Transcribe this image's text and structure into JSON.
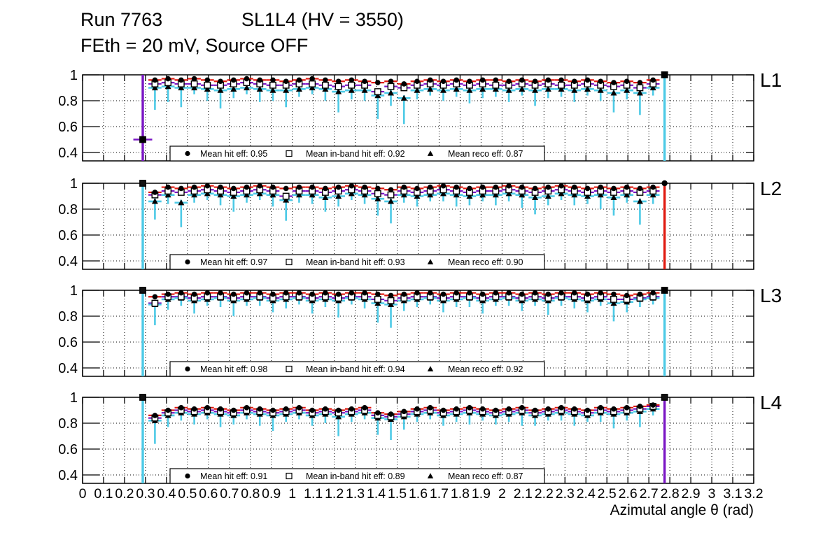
{
  "header": {
    "run": "Run 7763",
    "chamber": "SL1L4 (HV = 3550)",
    "conditions": "FEth = 20 mV, Source OFF"
  },
  "colors": {
    "hit_error": "#e01a10",
    "inband_error": "#7a16c4",
    "reco_error": "#4dcae6",
    "marker": "#000000",
    "grid": "#000000",
    "background": "#ffffff"
  },
  "chart_data": {
    "type": "scatter",
    "title": "Run 7763 SL1L4 (HV = 3550), FEth = 20 mV, Source OFF",
    "xlabel": "Azimutal angle θ (rad)",
    "ylabel": "",
    "xlim": [
      0,
      3.2
    ],
    "ylim": [
      0.335,
      1.0
    ],
    "grid": "dotted",
    "legend_position": "bottom-inside",
    "x_tick_labels": [
      "0",
      "0.1",
      "0.2",
      "0.3",
      "0.4",
      "0.5",
      "0.6",
      "0.7",
      "0.8",
      "0.9",
      "1",
      "1.1",
      "1.2",
      "1.3",
      "1.4",
      "1.5",
      "1.6",
      "1.7",
      "1.8",
      "1.9",
      "2",
      "2.1",
      "2.2",
      "2.3",
      "2.4",
      "2.5",
      "2.6",
      "2.7",
      "2.8",
      "2.9",
      "3",
      "3.1",
      "3.2"
    ],
    "y_tick_values": [
      1,
      0.8,
      0.6,
      0.4
    ],
    "y_tick_labels": [
      "1",
      "0.8",
      "0.6",
      "0.4"
    ],
    "err": {
      "hit_up": 0.018,
      "inband_up": 0.025,
      "reco_up": 0.022,
      "x_half_width": 0.0312
    },
    "x": [
      0.345,
      0.4075,
      0.47,
      0.5325,
      0.595,
      0.6575,
      0.72,
      0.7825,
      0.845,
      0.9075,
      0.97,
      1.0325,
      1.095,
      1.1575,
      1.22,
      1.2825,
      1.345,
      1.4075,
      1.47,
      1.5325,
      1.595,
      1.6575,
      1.72,
      1.7825,
      1.845,
      1.9075,
      1.97,
      2.0325,
      2.095,
      2.1575,
      2.22,
      2.2825,
      2.345,
      2.4075,
      2.47,
      2.5325,
      2.595,
      2.6575,
      2.72
    ],
    "panels": [
      {
        "label": "L1",
        "means": {
          "hit": 0.95,
          "inband": 0.92,
          "reco": 0.87
        },
        "legend": [
          {
            "marker": "circle",
            "label": "Mean hit  eff: 0.95"
          },
          {
            "marker": "square",
            "label": "Mean in-band hit eff: 0.92"
          },
          {
            "marker": "triangle",
            "label": "Mean reco eff: 0.87"
          }
        ],
        "hit": [
          0.96,
          0.97,
          0.96,
          0.97,
          0.96,
          0.95,
          0.96,
          0.97,
          0.96,
          0.96,
          0.95,
          0.96,
          0.97,
          0.96,
          0.95,
          0.96,
          0.95,
          0.94,
          0.95,
          0.93,
          0.95,
          0.96,
          0.95,
          0.96,
          0.95,
          0.96,
          0.96,
          0.95,
          0.96,
          0.95,
          0.96,
          0.96,
          0.95,
          0.96,
          0.95,
          0.94,
          0.95,
          0.94,
          0.96
        ],
        "inband": [
          0.93,
          0.94,
          0.93,
          0.93,
          0.92,
          0.92,
          0.93,
          0.94,
          0.93,
          0.92,
          0.92,
          0.93,
          0.93,
          0.92,
          0.91,
          0.92,
          0.92,
          0.87,
          0.91,
          0.9,
          0.92,
          0.93,
          0.92,
          0.93,
          0.92,
          0.93,
          0.92,
          0.92,
          0.93,
          0.92,
          0.93,
          0.92,
          0.92,
          0.93,
          0.92,
          0.91,
          0.92,
          0.9,
          0.93
        ],
        "reco": [
          0.9,
          0.91,
          0.9,
          0.9,
          0.89,
          0.88,
          0.89,
          0.9,
          0.89,
          0.88,
          0.88,
          0.89,
          0.9,
          0.89,
          0.87,
          0.88,
          0.88,
          0.84,
          0.86,
          0.82,
          0.88,
          0.89,
          0.88,
          0.89,
          0.88,
          0.89,
          0.89,
          0.88,
          0.89,
          0.88,
          0.89,
          0.89,
          0.88,
          0.89,
          0.88,
          0.86,
          0.88,
          0.86,
          0.9
        ],
        "reco_err_down": [
          0.17,
          0.12,
          0.15,
          0.05,
          0.09,
          0.14,
          0.07,
          0.05,
          0.1,
          0.08,
          0.13,
          0.06,
          0.05,
          0.09,
          0.16,
          0.07,
          0.08,
          0.18,
          0.1,
          0.2,
          0.07,
          0.05,
          0.08,
          0.06,
          0.1,
          0.07,
          0.06,
          0.09,
          0.05,
          0.12,
          0.07,
          0.06,
          0.09,
          0.05,
          0.08,
          0.15,
          0.07,
          0.17,
          0.06
        ],
        "outliers": [
          {
            "x": 0.287,
            "y": 0.5,
            "marker": "circle-square",
            "bar_color": "#7a16c4",
            "full_line": true,
            "xerr": 0.045
          },
          {
            "x": 2.775,
            "y": 1.0,
            "marker": "circle-square",
            "bar_color": "#4dcae6",
            "full_line": true
          }
        ]
      },
      {
        "label": "L2",
        "means": {
          "hit": 0.97,
          "inband": 0.93,
          "reco": 0.9
        },
        "legend": [
          {
            "marker": "circle",
            "label": "Mean hit  eff: 0.97"
          },
          {
            "marker": "square",
            "label": "Mean in-band hit eff: 0.93"
          },
          {
            "marker": "triangle",
            "label": "Mean reco eff: 0.90"
          }
        ],
        "hit": [
          0.93,
          0.97,
          0.96,
          0.97,
          0.98,
          0.97,
          0.96,
          0.97,
          0.98,
          0.97,
          0.96,
          0.97,
          0.97,
          0.96,
          0.97,
          0.98,
          0.97,
          0.96,
          0.95,
          0.97,
          0.96,
          0.97,
          0.98,
          0.97,
          0.96,
          0.97,
          0.97,
          0.98,
          0.97,
          0.96,
          0.97,
          0.98,
          0.97,
          0.96,
          0.97,
          0.96,
          0.97,
          0.96,
          0.97
        ],
        "inband": [
          0.91,
          0.94,
          0.93,
          0.94,
          0.95,
          0.94,
          0.93,
          0.94,
          0.95,
          0.94,
          0.9,
          0.94,
          0.94,
          0.93,
          0.94,
          0.95,
          0.94,
          0.92,
          0.91,
          0.94,
          0.93,
          0.94,
          0.95,
          0.94,
          0.93,
          0.94,
          0.94,
          0.95,
          0.94,
          0.93,
          0.94,
          0.95,
          0.94,
          0.93,
          0.94,
          0.93,
          0.94,
          0.93,
          0.94
        ],
        "reco": [
          0.86,
          0.91,
          0.85,
          0.91,
          0.92,
          0.91,
          0.9,
          0.91,
          0.92,
          0.91,
          0.87,
          0.91,
          0.91,
          0.89,
          0.9,
          0.92,
          0.91,
          0.88,
          0.86,
          0.91,
          0.9,
          0.91,
          0.92,
          0.91,
          0.9,
          0.91,
          0.91,
          0.92,
          0.91,
          0.89,
          0.9,
          0.92,
          0.91,
          0.9,
          0.91,
          0.89,
          0.91,
          0.86,
          0.91
        ],
        "reco_err_down": [
          0.14,
          0.07,
          0.19,
          0.06,
          0.05,
          0.08,
          0.12,
          0.06,
          0.05,
          0.09,
          0.16,
          0.06,
          0.07,
          0.11,
          0.08,
          0.05,
          0.07,
          0.13,
          0.17,
          0.06,
          0.08,
          0.05,
          0.06,
          0.09,
          0.07,
          0.05,
          0.08,
          0.06,
          0.1,
          0.13,
          0.07,
          0.05,
          0.08,
          0.06,
          0.11,
          0.14,
          0.06,
          0.18,
          0.07
        ],
        "outliers": [
          {
            "x": 0.287,
            "y": 1.0,
            "marker": "square",
            "bar_color": "#4dcae6",
            "full_line": true
          },
          {
            "x": 2.775,
            "y": 1.0,
            "marker": "circle",
            "bar_color": "#e01a10",
            "full_line": true
          }
        ]
      },
      {
        "label": "L3",
        "means": {
          "hit": 0.98,
          "inband": 0.94,
          "reco": 0.92
        },
        "legend": [
          {
            "marker": "circle",
            "label": "Mean hit  eff: 0.98"
          },
          {
            "marker": "square",
            "label": "Mean in-band hit eff: 0.94"
          },
          {
            "marker": "triangle",
            "label": "Mean reco eff: 0.92"
          }
        ],
        "hit": [
          0.95,
          0.97,
          0.98,
          0.97,
          0.98,
          0.98,
          0.97,
          0.98,
          0.98,
          0.97,
          0.98,
          0.98,
          0.97,
          0.98,
          0.97,
          0.98,
          0.98,
          0.97,
          0.96,
          0.97,
          0.98,
          0.98,
          0.97,
          0.98,
          0.98,
          0.97,
          0.98,
          0.98,
          0.97,
          0.98,
          0.97,
          0.98,
          0.98,
          0.97,
          0.98,
          0.97,
          0.96,
          0.97,
          0.98
        ],
        "inband": [
          0.9,
          0.95,
          0.95,
          0.94,
          0.95,
          0.95,
          0.94,
          0.95,
          0.95,
          0.94,
          0.95,
          0.95,
          0.94,
          0.95,
          0.94,
          0.95,
          0.95,
          0.93,
          0.92,
          0.94,
          0.95,
          0.95,
          0.94,
          0.95,
          0.95,
          0.94,
          0.95,
          0.95,
          0.94,
          0.95,
          0.94,
          0.95,
          0.95,
          0.94,
          0.95,
          0.93,
          0.93,
          0.94,
          0.95
        ],
        "reco": [
          0.89,
          0.93,
          0.94,
          0.92,
          0.93,
          0.94,
          0.92,
          0.93,
          0.94,
          0.92,
          0.93,
          0.94,
          0.92,
          0.93,
          0.92,
          0.94,
          0.93,
          0.9,
          0.89,
          0.92,
          0.93,
          0.94,
          0.92,
          0.93,
          0.94,
          0.92,
          0.93,
          0.94,
          0.92,
          0.93,
          0.92,
          0.94,
          0.93,
          0.92,
          0.93,
          0.9,
          0.91,
          0.93,
          0.94
        ],
        "reco_err_down": [
          0.16,
          0.08,
          0.06,
          0.1,
          0.05,
          0.07,
          0.12,
          0.05,
          0.06,
          0.09,
          0.07,
          0.05,
          0.1,
          0.06,
          0.13,
          0.05,
          0.07,
          0.15,
          0.18,
          0.08,
          0.06,
          0.05,
          0.09,
          0.06,
          0.07,
          0.1,
          0.05,
          0.06,
          0.08,
          0.05,
          0.11,
          0.06,
          0.07,
          0.09,
          0.05,
          0.14,
          0.08,
          0.06,
          0.05
        ],
        "outliers": [
          {
            "x": 0.287,
            "y": 1.0,
            "marker": "square",
            "bar_color": "#4dcae6",
            "full_line": true
          },
          {
            "x": 2.775,
            "y": 1.0,
            "marker": "circle-square",
            "bar_color": "#4dcae6",
            "full_line": true
          }
        ]
      },
      {
        "label": "L4",
        "means": {
          "hit": 0.91,
          "inband": 0.89,
          "reco": 0.87
        },
        "legend": [
          {
            "marker": "circle",
            "label": "Mean hit  eff: 0.91"
          },
          {
            "marker": "square",
            "label": "Mean in-band hit eff: 0.89"
          },
          {
            "marker": "triangle",
            "label": "Mean reco eff: 0.87"
          }
        ],
        "hit": [
          0.86,
          0.9,
          0.92,
          0.91,
          0.92,
          0.91,
          0.9,
          0.92,
          0.91,
          0.9,
          0.91,
          0.92,
          0.9,
          0.91,
          0.9,
          0.91,
          0.92,
          0.88,
          0.87,
          0.89,
          0.91,
          0.92,
          0.9,
          0.91,
          0.92,
          0.91,
          0.9,
          0.91,
          0.92,
          0.9,
          0.91,
          0.92,
          0.91,
          0.9,
          0.92,
          0.91,
          0.92,
          0.93,
          0.94
        ],
        "inband": [
          0.84,
          0.88,
          0.9,
          0.89,
          0.9,
          0.89,
          0.88,
          0.9,
          0.89,
          0.88,
          0.89,
          0.9,
          0.88,
          0.89,
          0.88,
          0.89,
          0.9,
          0.86,
          0.85,
          0.87,
          0.89,
          0.9,
          0.88,
          0.89,
          0.9,
          0.89,
          0.88,
          0.89,
          0.9,
          0.88,
          0.89,
          0.9,
          0.89,
          0.88,
          0.9,
          0.89,
          0.9,
          0.91,
          0.93
        ],
        "reco": [
          0.82,
          0.86,
          0.88,
          0.87,
          0.88,
          0.87,
          0.86,
          0.88,
          0.87,
          0.86,
          0.87,
          0.88,
          0.86,
          0.87,
          0.85,
          0.87,
          0.88,
          0.84,
          0.83,
          0.85,
          0.87,
          0.88,
          0.86,
          0.87,
          0.88,
          0.87,
          0.86,
          0.87,
          0.88,
          0.86,
          0.87,
          0.88,
          0.87,
          0.86,
          0.88,
          0.87,
          0.88,
          0.89,
          0.91
        ],
        "reco_err_down": [
          0.18,
          0.09,
          0.06,
          0.08,
          0.05,
          0.1,
          0.07,
          0.05,
          0.09,
          0.12,
          0.06,
          0.05,
          0.08,
          0.07,
          0.15,
          0.06,
          0.05,
          0.13,
          0.16,
          0.1,
          0.06,
          0.05,
          0.08,
          0.06,
          0.09,
          0.05,
          0.07,
          0.06,
          0.1,
          0.08,
          0.05,
          0.06,
          0.09,
          0.05,
          0.07,
          0.11,
          0.06,
          0.12,
          0.05
        ],
        "outliers": [
          {
            "x": 0.287,
            "y": 1.0,
            "marker": "square",
            "bar_color": "#4dcae6",
            "full_line": true
          },
          {
            "x": 2.775,
            "y": 1.0,
            "marker": "square",
            "bar_color": "#7a16c4",
            "full_line": true
          }
        ]
      }
    ]
  }
}
